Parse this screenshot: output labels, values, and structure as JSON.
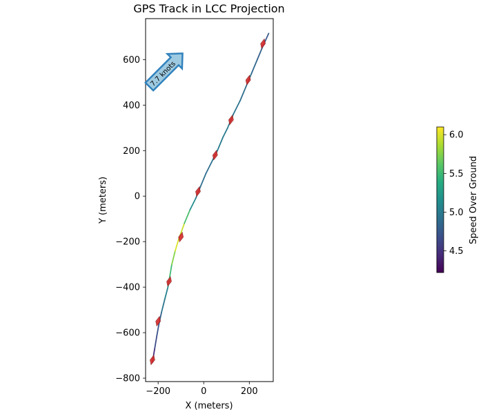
{
  "chart_data": {
    "type": "line",
    "title": "GPS Track in LCC Projection",
    "xlabel": "X (meters)",
    "ylabel": "Y (meters)",
    "xlim": [
      -255,
      305
    ],
    "ylim": [
      -815,
      780
    ],
    "x_ticks": [
      -200,
      0,
      200
    ],
    "x_tick_labels": [
      "−200",
      "0",
      "200"
    ],
    "y_ticks": [
      -800,
      -600,
      -400,
      -200,
      0,
      200,
      400,
      600
    ],
    "y_tick_labels": [
      "−800",
      "−600",
      "−400",
      "−200",
      "0",
      "200",
      "400",
      "600"
    ],
    "grid": false,
    "colormap": "viridis",
    "colorbar": {
      "label": "Speed Over Ground",
      "vmin": 4.22,
      "vmax": 6.1,
      "ticks": [
        4.5,
        5.0,
        5.5,
        6.0
      ],
      "tick_labels": [
        "4.5",
        "5.0",
        "5.5",
        "6.0"
      ]
    },
    "track": [
      {
        "x": -225,
        "y": -730,
        "speed": 4.3
      },
      {
        "x": -215,
        "y": -670,
        "speed": 4.6
      },
      {
        "x": -205,
        "y": -610,
        "speed": 4.7
      },
      {
        "x": -196,
        "y": -560,
        "speed": 4.7
      },
      {
        "x": -185,
        "y": -510,
        "speed": 4.9
      },
      {
        "x": -170,
        "y": -450,
        "speed": 5.0
      },
      {
        "x": -157,
        "y": -400,
        "speed": 5.1
      },
      {
        "x": -150,
        "y": -360,
        "speed": 5.4
      },
      {
        "x": -140,
        "y": -300,
        "speed": 5.6
      },
      {
        "x": -125,
        "y": -240,
        "speed": 5.9
      },
      {
        "x": -110,
        "y": -190,
        "speed": 6.1
      },
      {
        "x": -85,
        "y": -120,
        "speed": 5.8
      },
      {
        "x": -60,
        "y": -60,
        "speed": 5.3
      },
      {
        "x": -35,
        "y": -10,
        "speed": 5.0
      },
      {
        "x": -15,
        "y": 40,
        "speed": 4.9
      },
      {
        "x": 10,
        "y": 100,
        "speed": 4.9
      },
      {
        "x": 35,
        "y": 150,
        "speed": 4.9
      },
      {
        "x": 60,
        "y": 200,
        "speed": 5.0
      },
      {
        "x": 85,
        "y": 260,
        "speed": 5.0
      },
      {
        "x": 105,
        "y": 300,
        "speed": 5.0
      },
      {
        "x": 130,
        "y": 360,
        "speed": 5.0
      },
      {
        "x": 160,
        "y": 420,
        "speed": 4.9
      },
      {
        "x": 185,
        "y": 480,
        "speed": 4.9
      },
      {
        "x": 210,
        "y": 540,
        "speed": 4.9
      },
      {
        "x": 235,
        "y": 600,
        "speed": 4.8
      },
      {
        "x": 260,
        "y": 660,
        "speed": 4.8
      },
      {
        "x": 285,
        "y": 715,
        "speed": 4.7
      }
    ],
    "heading_arrows": [
      {
        "x": -225,
        "y": -720
      },
      {
        "x": -200,
        "y": -550
      },
      {
        "x": -152,
        "y": -375
      },
      {
        "x": -100,
        "y": -180
      },
      {
        "x": -25,
        "y": 20
      },
      {
        "x": 50,
        "y": 180
      },
      {
        "x": 120,
        "y": 335
      },
      {
        "x": 195,
        "y": 510
      },
      {
        "x": 260,
        "y": 670
      }
    ],
    "annotation": {
      "text": "7.7 knots",
      "x": -110,
      "y": 610,
      "angle_deg": 45,
      "fill": "#9ecae1",
      "edge": "#3182bd"
    }
  }
}
